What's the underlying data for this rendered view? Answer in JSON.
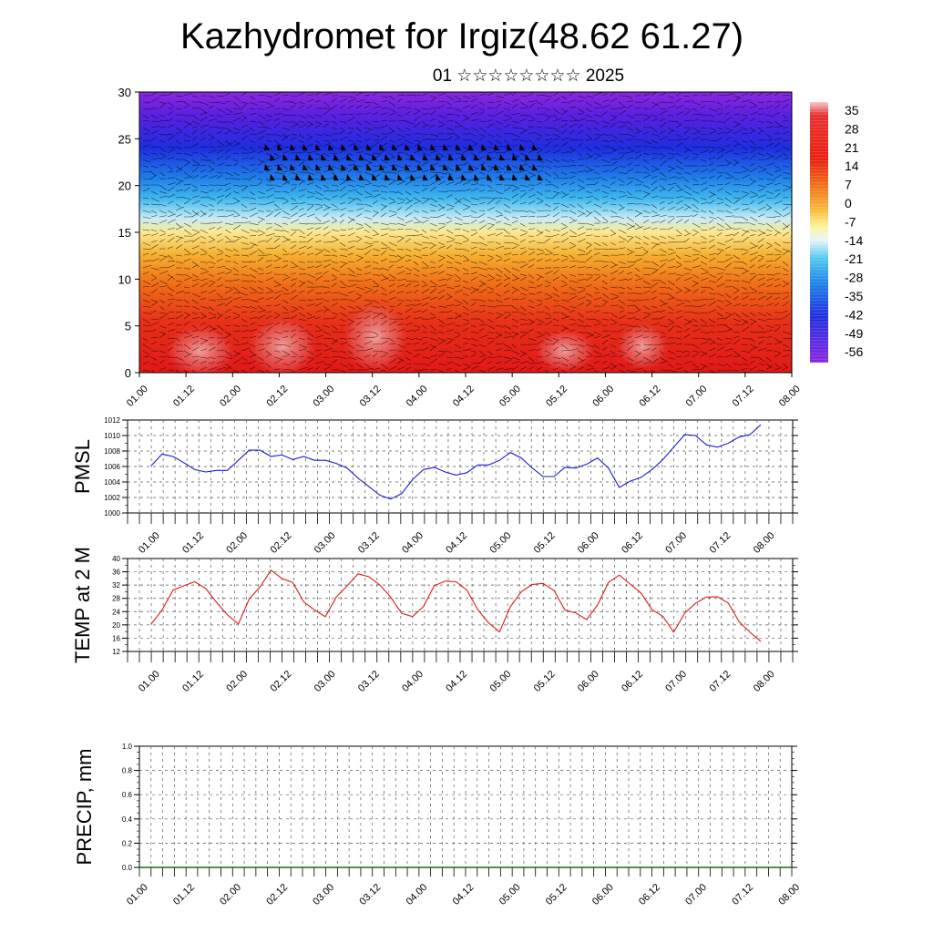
{
  "title": "Kazhydromet for Irgiz(48.62 61.27)",
  "subtitle": "01 ☆☆☆☆☆☆☆☆ 2025",
  "time_labels": [
    "01.00",
    "01.12",
    "02.00",
    "02.12",
    "03.00",
    "03.12",
    "04.00",
    "04.12",
    "05.00",
    "05.12",
    "06.00",
    "06.12",
    "07.00",
    "07.12",
    "08.00"
  ],
  "colorbar": {
    "labels": [
      "35",
      "28",
      "21",
      "14",
      "7",
      "0",
      "-7",
      "-14",
      "-21",
      "-28",
      "-35",
      "-42",
      "-49",
      "-56"
    ],
    "colors": [
      "#f0c0c0",
      "#e82020",
      "#f06010",
      "#f5a020",
      "#fae050",
      "#fefbc0",
      "#a0e0f5",
      "#20a0f0",
      "#2040e0",
      "#5010e0",
      "#9020e0"
    ]
  },
  "chart_data": [
    {
      "type": "heatmap",
      "title": "",
      "xlabel": "",
      "ylabel": "",
      "ylim": [
        0,
        30
      ],
      "y_ticks": [
        0,
        5,
        10,
        15,
        20,
        25,
        30
      ],
      "x_categories": [
        "01.00",
        "01.12",
        "02.00",
        "02.12",
        "03.00",
        "03.12",
        "04.00",
        "04.12",
        "05.00",
        "05.12",
        "06.00",
        "06.12",
        "07.00",
        "07.12",
        "08.00"
      ],
      "description_levels": [
        {
          "height": 0,
          "temp": 30
        },
        {
          "height": 5,
          "temp": 21
        },
        {
          "height": 10,
          "temp": 10
        },
        {
          "height": 15,
          "temp": -5
        },
        {
          "height": 20,
          "temp": -28
        },
        {
          "height": 25,
          "temp": -50
        },
        {
          "height": 30,
          "temp": -60
        }
      ],
      "colorbar_range": [
        -56,
        35
      ]
    },
    {
      "type": "line",
      "ylabel": "PMSL",
      "ylim": [
        1000,
        1012
      ],
      "y_ticks": [
        1000,
        1002,
        1004,
        1006,
        1008,
        1010,
        1012
      ],
      "series": [
        {
          "color": "#1a1adc",
          "values": [
            1006.1,
            1007.6,
            1007.3,
            1006.5,
            1005.6,
            1005.3,
            1005.5,
            1005.5,
            1006.8,
            1008.1,
            1008.1,
            1007.3,
            1007.5,
            1006.9,
            1007.3,
            1006.8,
            1006.8,
            1006.4,
            1005.8,
            1004.5,
            1003.4,
            1002.3,
            1001.8,
            1002.5,
            1004.3,
            1005.6,
            1005.9,
            1005.3,
            1004.9,
            1005.2,
            1006.2,
            1006.2,
            1006.8,
            1007.8,
            1007.1,
            1005.8,
            1004.7,
            1004.7,
            1005.9,
            1005.8,
            1006.3,
            1007.1,
            1005.8,
            1003.3,
            1004.1,
            1004.6,
            1005.6,
            1006.9,
            1008.5,
            1010.1,
            1010.0,
            1008.8,
            1008.5,
            1009.0,
            1009.8,
            1010.1,
            1011.4
          ]
        }
      ]
    },
    {
      "type": "line",
      "ylabel": "TEMP at 2 M",
      "ylim": [
        12,
        40
      ],
      "y_ticks": [
        12,
        16,
        20,
        24,
        28,
        32,
        36,
        40
      ],
      "series": [
        {
          "color": "#dc1a1a",
          "values": [
            20.3,
            24.5,
            30.5,
            31.8,
            33.0,
            31.0,
            26.8,
            23.0,
            20.3,
            27.8,
            31.5,
            36.5,
            34.0,
            32.8,
            27.0,
            24.5,
            22.5,
            28.4,
            31.8,
            35.4,
            34.5,
            32.0,
            28.4,
            23.5,
            22.5,
            25.5,
            31.8,
            33.2,
            33.0,
            30.5,
            24.6,
            20.6,
            17.9,
            25.5,
            30.0,
            32.2,
            32.5,
            30.4,
            24.5,
            23.6,
            21.6,
            26.0,
            32.8,
            35.0,
            32.3,
            29.6,
            24.6,
            22.6,
            17.8,
            23.5,
            26.5,
            28.4,
            28.5,
            26.6,
            21.0,
            17.8,
            15.0
          ]
        }
      ]
    },
    {
      "type": "line",
      "ylabel": "PRECIP, mm",
      "ylim": [
        0,
        1
      ],
      "y_ticks": [
        "0.0",
        "0.2",
        "0.4",
        "0.6",
        "0.8",
        "1.0"
      ],
      "series": [
        {
          "color": "#1a6a1a",
          "values": [
            0,
            0,
            0,
            0,
            0,
            0,
            0,
            0,
            0,
            0,
            0,
            0,
            0,
            0,
            0,
            0,
            0,
            0,
            0,
            0,
            0,
            0,
            0,
            0,
            0,
            0,
            0,
            0,
            0,
            0,
            0,
            0,
            0,
            0,
            0,
            0,
            0,
            0,
            0,
            0,
            0,
            0,
            0,
            0,
            0,
            0,
            0,
            0,
            0,
            0,
            0,
            0,
            0,
            0,
            0,
            0,
            0
          ]
        }
      ]
    }
  ]
}
